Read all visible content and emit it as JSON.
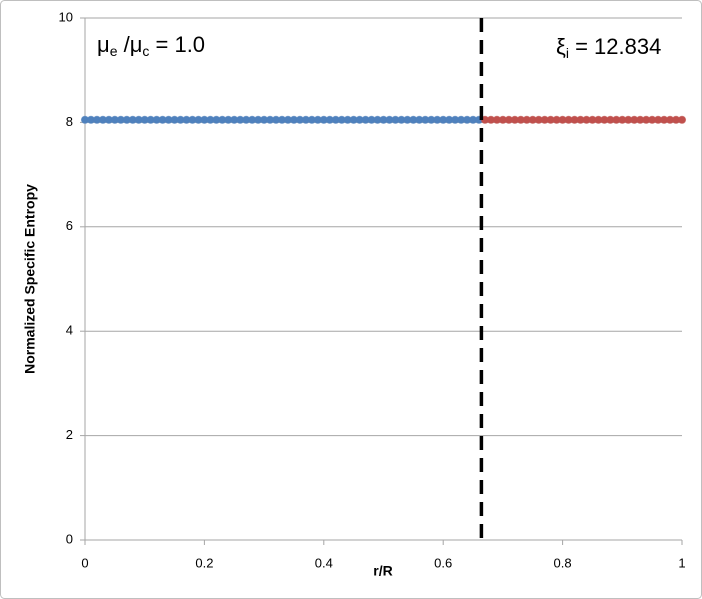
{
  "chart_data": {
    "type": "scatter",
    "xlabel": "r/R",
    "ylabel": "Normalized Specific Entropy",
    "xlim": [
      0,
      1
    ],
    "xticks": [
      0,
      0.2,
      0.4,
      0.6,
      0.8,
      1
    ],
    "ylim": [
      0,
      10
    ],
    "yticks": [
      0,
      2,
      4,
      6,
      8,
      10
    ],
    "grid": true,
    "vline": 0.664,
    "annotations": [
      [
        "μ",
        "e",
        " /μ",
        "c",
        " = 1.0"
      ],
      [
        "ξ",
        "i",
        " = 12.834"
      ]
    ],
    "series": [
      {
        "color": "#4f81bd",
        "x": [
          0,
          0.01,
          0.02,
          0.03,
          0.04,
          0.05,
          0.06,
          0.07,
          0.08,
          0.09,
          0.1,
          0.11,
          0.12,
          0.13,
          0.14,
          0.15,
          0.16,
          0.17,
          0.18,
          0.19,
          0.2,
          0.21,
          0.22,
          0.23,
          0.24,
          0.25,
          0.26,
          0.27,
          0.28,
          0.29,
          0.3,
          0.31,
          0.32,
          0.33,
          0.34,
          0.35,
          0.36,
          0.37,
          0.38,
          0.39,
          0.4,
          0.41,
          0.42,
          0.43,
          0.44,
          0.45,
          0.46,
          0.47,
          0.48,
          0.49,
          0.5,
          0.51,
          0.52,
          0.53,
          0.54,
          0.55,
          0.56,
          0.57,
          0.58,
          0.59,
          0.6,
          0.61,
          0.62,
          0.63,
          0.64,
          0.65,
          0.66
        ],
        "values": [
          8.05,
          8.05,
          8.05,
          8.05,
          8.05,
          8.05,
          8.05,
          8.05,
          8.05,
          8.05,
          8.05,
          8.05,
          8.05,
          8.05,
          8.05,
          8.05,
          8.05,
          8.05,
          8.05,
          8.05,
          8.05,
          8.05,
          8.05,
          8.05,
          8.05,
          8.05,
          8.05,
          8.05,
          8.05,
          8.05,
          8.05,
          8.05,
          8.05,
          8.05,
          8.05,
          8.05,
          8.05,
          8.05,
          8.05,
          8.05,
          8.05,
          8.05,
          8.05,
          8.05,
          8.05,
          8.05,
          8.05,
          8.05,
          8.05,
          8.05,
          8.05,
          8.05,
          8.05,
          8.05,
          8.05,
          8.05,
          8.05,
          8.05,
          8.05,
          8.05,
          8.05,
          8.05,
          8.05,
          8.05,
          8.05,
          8.05,
          8.05
        ]
      },
      {
        "color": "#c0504d",
        "x": [
          0.67,
          0.68,
          0.69,
          0.7,
          0.71,
          0.72,
          0.73,
          0.74,
          0.75,
          0.76,
          0.77,
          0.78,
          0.79,
          0.8,
          0.81,
          0.82,
          0.83,
          0.84,
          0.85,
          0.86,
          0.87,
          0.88,
          0.89,
          0.9,
          0.91,
          0.92,
          0.93,
          0.94,
          0.95,
          0.96,
          0.97,
          0.98,
          0.99,
          1
        ],
        "values": [
          8.05,
          8.05,
          8.05,
          8.05,
          8.05,
          8.05,
          8.05,
          8.05,
          8.05,
          8.05,
          8.05,
          8.05,
          8.05,
          8.05,
          8.05,
          8.05,
          8.05,
          8.05,
          8.05,
          8.05,
          8.05,
          8.05,
          8.05,
          8.05,
          8.05,
          8.05,
          8.05,
          8.05,
          8.05,
          8.05,
          8.05,
          8.05,
          8.05,
          8.05
        ]
      }
    ]
  }
}
